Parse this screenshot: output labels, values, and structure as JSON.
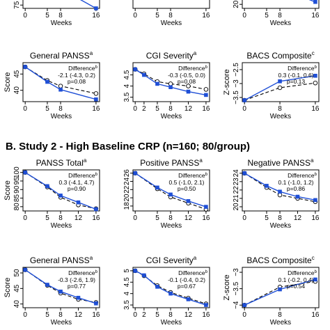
{
  "section_b_title": "B. Study 2 - High Baseline CRP (n=160; 80/group)",
  "colors": {
    "treatment": "#1f4fd6",
    "placebo": "#000000"
  },
  "chart_data": [
    {
      "id": "a-top-1",
      "type": "line",
      "title": "",
      "xlabel": "Weeks",
      "ylabel": "",
      "x": [
        0,
        5,
        8,
        16
      ],
      "xticks": [
        0,
        5,
        8,
        16
      ],
      "xlim": [
        -0.5,
        16.8
      ],
      "yticks": [
        75
      ],
      "ylim": [
        74.5,
        80
      ],
      "clip_top": true,
      "series": [
        {
          "role": "treatment",
          "values": [
            80.5,
            78.5,
            77.5,
            74.5
          ]
        },
        {
          "role": "placebo",
          "values": [
            null,
            null,
            null,
            null
          ]
        }
      ]
    },
    {
      "id": "a-top-2",
      "type": "line",
      "title": "",
      "xlabel": "Weeks",
      "ylabel": "",
      "x": [
        0,
        5,
        8,
        16
      ],
      "xticks": [
        0,
        5,
        8,
        16
      ],
      "xlim": [
        -0.5,
        16.8
      ],
      "yticks": [],
      "ylim": [
        0,
        10
      ],
      "clip_top": true,
      "series": [
        {
          "role": "treatment",
          "values": [
            13,
            8,
            5,
            3
          ]
        },
        {
          "role": "placebo",
          "values": [
            null,
            null,
            null,
            null
          ]
        }
      ]
    },
    {
      "id": "a-top-3",
      "type": "line",
      "title": "",
      "xlabel": "Weeks",
      "ylabel": "",
      "x": [
        0,
        5,
        8,
        16
      ],
      "xticks": [
        0,
        5,
        8,
        16
      ],
      "xlim": [
        -0.5,
        16.8
      ],
      "yticks": [
        20
      ],
      "ylim": [
        19.5,
        24
      ],
      "clip_top": true,
      "series": [
        {
          "role": "treatment",
          "values": [
            25,
            23,
            22,
            20.3
          ]
        },
        {
          "role": "placebo",
          "values": [
            null,
            null,
            null,
            null
          ]
        }
      ]
    },
    {
      "id": "a-general-panss",
      "type": "line",
      "title": "General PANSS",
      "title_sup": "a",
      "xlabel": "Weeks",
      "ylabel": "Score",
      "x": [
        0,
        5,
        8,
        16
      ],
      "xticks": [
        0,
        5,
        8,
        16
      ],
      "xlim": [
        -0.5,
        16.8
      ],
      "yticks": [
        40,
        45
      ],
      "ylim": [
        36.5,
        48.5
      ],
      "annotation": {
        "head": "Difference",
        "head_sup": "b",
        "lines": [
          "-2.1 (-4.3, 0.2)",
          "p=0.08"
        ]
      },
      "series": [
        {
          "role": "treatment",
          "values": [
            47.2,
            42.6,
            40.2,
            37.2
          ]
        },
        {
          "role": "placebo",
          "values": [
            47.2,
            43.0,
            41.3,
            39.0
          ]
        }
      ]
    },
    {
      "id": "a-cgi-severity",
      "type": "line",
      "title": "CGI Severity",
      "title_sup": "a",
      "xlabel": "Weeks",
      "ylabel": "",
      "x": [
        0,
        2,
        5,
        8,
        12,
        16
      ],
      "xticks": [
        0,
        2,
        5,
        8,
        12,
        16
      ],
      "xlim": [
        -0.5,
        16.8
      ],
      "yticks": [
        3.5,
        4,
        4.5
      ],
      "ylim": [
        3.3,
        5.05
      ],
      "annotation": {
        "head": "Difference",
        "head_sup": "b",
        "lines": [
          "-0.3 (-0.5, 0.0)",
          "p=0.08"
        ]
      },
      "series": [
        {
          "role": "treatment",
          "values": [
            4.75,
            4.5,
            4.1,
            3.95,
            3.75,
            3.6
          ]
        },
        {
          "role": "placebo",
          "values": [
            4.75,
            4.55,
            4.2,
            4.1,
            4.0,
            3.85
          ]
        }
      ]
    },
    {
      "id": "a-bacs-composite",
      "type": "line",
      "title": "BACS Composite",
      "title_sup": "c",
      "xlabel": "Weeks",
      "ylabel": "Z-score",
      "x": [
        0,
        8,
        16
      ],
      "xticks": [
        0,
        8,
        16
      ],
      "xlim": [
        -0.5,
        16.8
      ],
      "yticks": [
        -3.5,
        -3,
        -2.5
      ],
      "ylim": [
        -3.65,
        -2.25
      ],
      "annotation": {
        "head": "Difference",
        "head_sup": "b",
        "lines": [
          "0.3 (-0.1, 0.6)",
          "p=0.13"
        ]
      },
      "series": [
        {
          "role": "treatment",
          "values": [
            -3.6,
            -2.92,
            -2.72
          ]
        },
        {
          "role": "placebo",
          "values": [
            -3.6,
            -3.15,
            -2.98
          ]
        }
      ]
    },
    {
      "id": "b-panss-total",
      "type": "line",
      "title": "PANSS Total",
      "title_sup": "a",
      "xlabel": "Weeks",
      "ylabel": "Score",
      "x": [
        0,
        5,
        8,
        12,
        16
      ],
      "xticks": [
        0,
        5,
        8,
        12,
        16
      ],
      "xlim": [
        -0.5,
        16.8
      ],
      "yticks": [
        80,
        85,
        90,
        95,
        100
      ],
      "ylim": [
        77.5,
        101.5
      ],
      "annotation": {
        "head": "Difference",
        "head_sup": "b",
        "lines": [
          "0.3 (-4.1, 4.7)",
          "p=0.90"
        ]
      },
      "series": [
        {
          "role": "treatment",
          "values": [
            100,
            92,
            86.5,
            82.5,
            78.5
          ]
        },
        {
          "role": "placebo",
          "values": [
            100,
            91.5,
            85.5,
            81,
            78.8
          ]
        }
      ]
    },
    {
      "id": "b-positive-panss",
      "type": "line",
      "title": "Positive PANSS",
      "title_sup": "a",
      "xlabel": "Weeks",
      "ylabel": "",
      "x": [
        0,
        5,
        8,
        12,
        16
      ],
      "xticks": [
        0,
        5,
        8,
        12,
        16
      ],
      "xlim": [
        -0.5,
        16.8
      ],
      "yticks": [
        18,
        20,
        22,
        24,
        26
      ],
      "ylim": [
        16.8,
        26.8
      ],
      "annotation": {
        "head": "Difference",
        "head_sup": "b",
        "lines": [
          "0.5 (-1.0, 2.1)",
          "p=0.50"
        ]
      },
      "series": [
        {
          "role": "treatment",
          "values": [
            26,
            22.5,
            20.8,
            19.2,
            17.8
          ]
        },
        {
          "role": "placebo",
          "values": [
            26,
            22.2,
            20.2,
            18.7,
            17.2
          ]
        }
      ]
    },
    {
      "id": "b-negative-panss",
      "type": "line",
      "title": "Negative PANSS",
      "title_sup": "a",
      "xlabel": "Weeks",
      "ylabel": "",
      "x": [
        0,
        5,
        8,
        12,
        16
      ],
      "xticks": [
        0,
        5,
        8,
        12,
        16
      ],
      "xlim": [
        -0.5,
        16.8
      ],
      "yticks": [
        20,
        21,
        22,
        23,
        24
      ],
      "ylim": [
        19.5,
        24.4
      ],
      "annotation": {
        "head": "Difference",
        "head_sup": "b",
        "lines": [
          "0.1 (-1.0, 1.2)",
          "p=0.86"
        ]
      },
      "series": [
        {
          "role": "treatment",
          "values": [
            24,
            22.5,
            21.8,
            21.2,
            20.8
          ]
        },
        {
          "role": "placebo",
          "values": [
            24,
            22.3,
            21.4,
            21.0,
            20.6
          ]
        }
      ]
    },
    {
      "id": "b-general-panss",
      "type": "line",
      "title": "General PANSS",
      "title_sup": "a",
      "xlabel": "Weeks",
      "ylabel": "Score",
      "x": [
        0,
        5,
        8,
        12,
        16
      ],
      "xticks": [
        0,
        5,
        8,
        12,
        16
      ],
      "xlim": [
        -0.5,
        16.8
      ],
      "yticks": [
        40,
        45,
        50
      ],
      "ylim": [
        38.8,
        51.8
      ],
      "annotation": {
        "head": "Difference",
        "head_sup": "b",
        "lines": [
          "-0.3 (-2.6, 1.9)",
          "p=0.77"
        ]
      },
      "series": [
        {
          "role": "treatment",
          "values": [
            51,
            46.2,
            44,
            42,
            40.2
          ]
        },
        {
          "role": "placebo",
          "values": [
            51,
            46.0,
            43.5,
            41.5,
            40.5
          ]
        }
      ]
    },
    {
      "id": "b-cgi-severity",
      "type": "line",
      "title": "CGI Severity",
      "title_sup": "a",
      "xlabel": "Weeks",
      "ylabel": "",
      "x": [
        0,
        2,
        5,
        8,
        12,
        16
      ],
      "xticks": [
        0,
        2,
        5,
        8,
        12,
        16
      ],
      "xlim": [
        -0.5,
        16.8
      ],
      "yticks": [
        3.5,
        4,
        4.5,
        5
      ],
      "ylim": [
        3.38,
        5.15
      ],
      "annotation": {
        "head": "Difference",
        "head_sup": "b",
        "lines": [
          "-0.1 (-0.4, 0.2)",
          "p=0.67"
        ]
      },
      "series": [
        {
          "role": "treatment",
          "values": [
            5.0,
            4.8,
            4.3,
            4.0,
            3.75,
            3.5
          ]
        },
        {
          "role": "placebo",
          "values": [
            5.0,
            4.78,
            4.35,
            4.05,
            3.8,
            3.55
          ]
        }
      ]
    },
    {
      "id": "b-bacs-composite",
      "type": "line",
      "title": "BACS Composite",
      "title_sup": "c",
      "xlabel": "Weeks",
      "ylabel": "Z-score",
      "x": [
        0,
        8,
        16
      ],
      "xticks": [
        0,
        8,
        16
      ],
      "xlim": [
        -0.5,
        16.8
      ],
      "yticks": [
        -4,
        -3.5,
        -3
      ],
      "ylim": [
        -4.08,
        -2.85
      ],
      "annotation": {
        "head": "Difference",
        "head_sup": "b",
        "lines": [
          "0.1 (-0.2, 0.4)",
          "p=0.54"
        ]
      },
      "series": [
        {
          "role": "treatment",
          "values": [
            -4.0,
            -3.52,
            -3.22
          ]
        },
        {
          "role": "placebo",
          "values": [
            -4.0,
            -3.45,
            -3.28
          ]
        }
      ]
    }
  ]
}
